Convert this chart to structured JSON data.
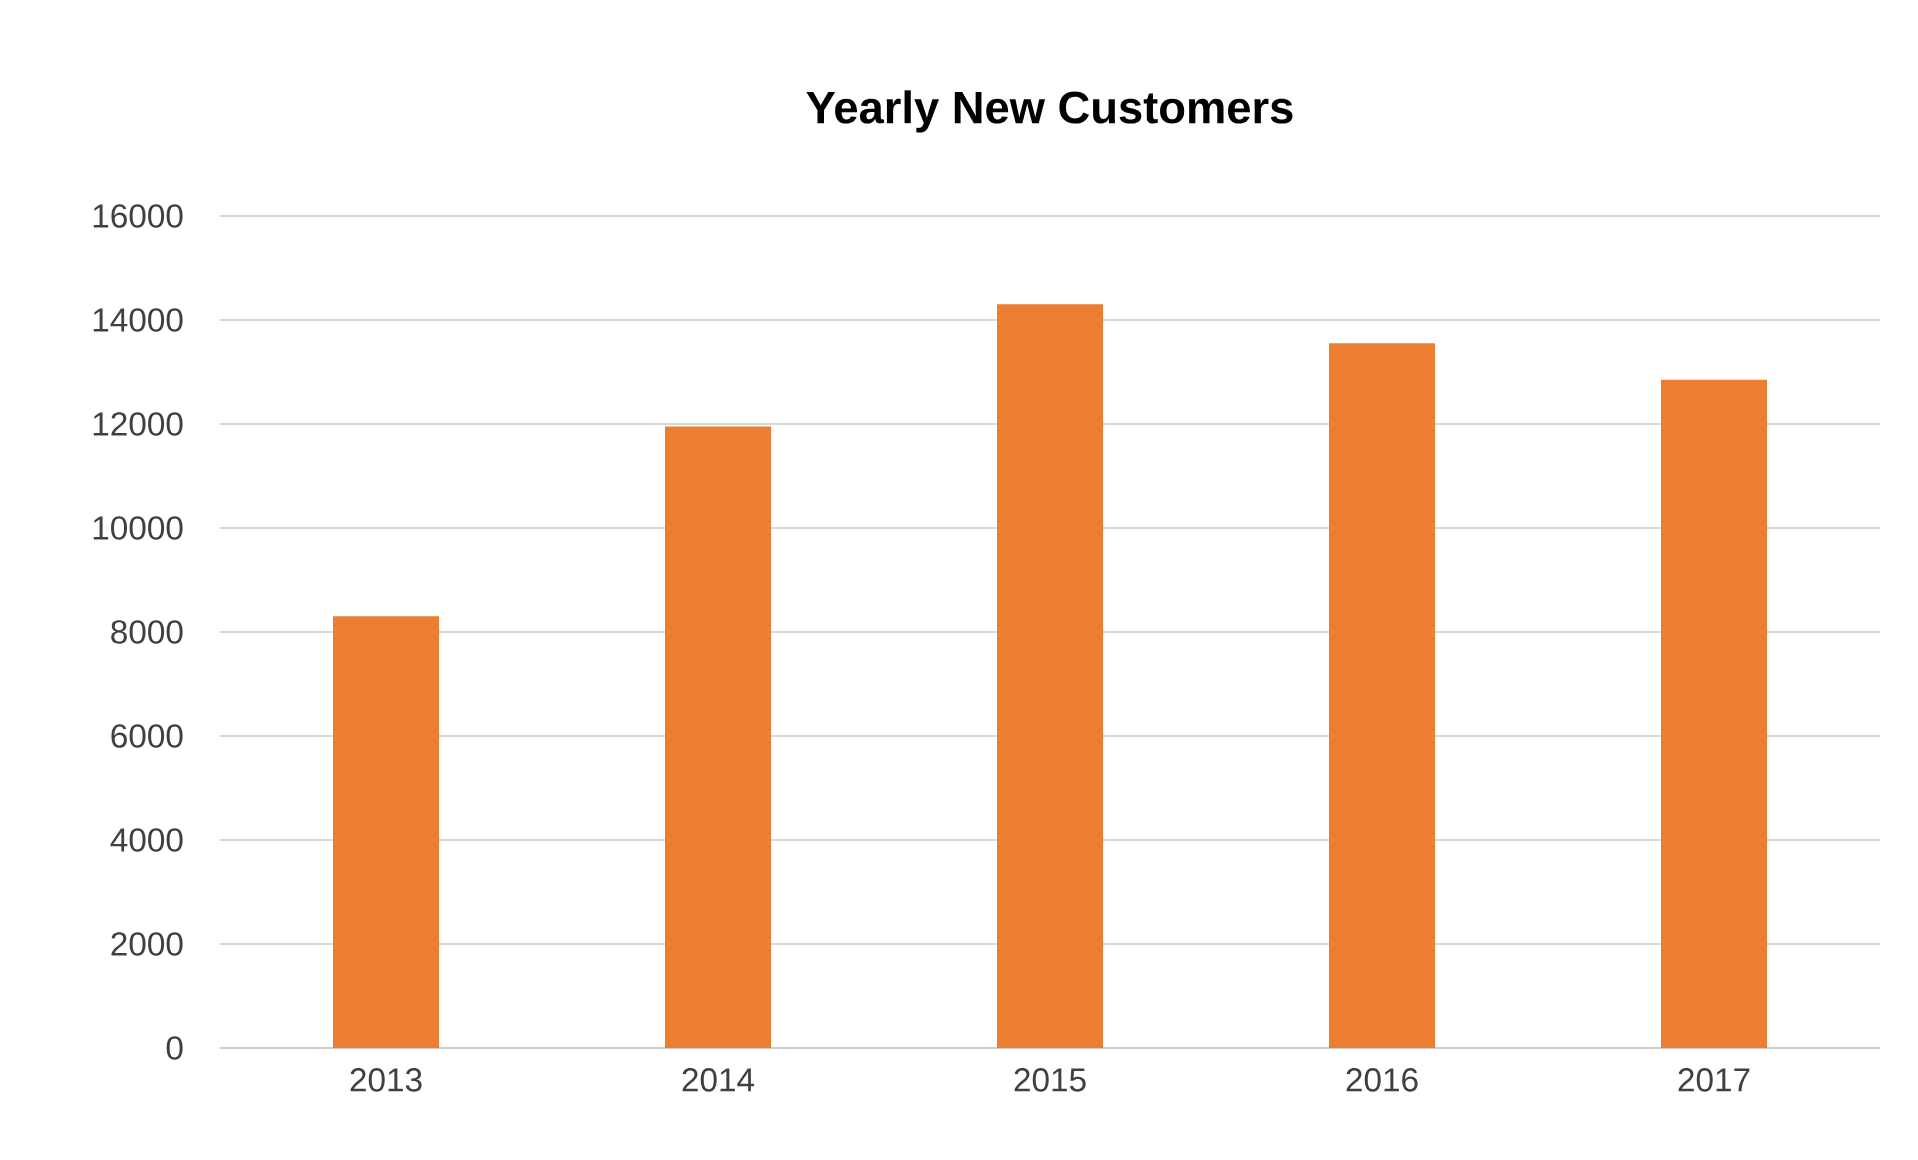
{
  "chart_data": {
    "type": "bar",
    "title": "Yearly New Customers",
    "categories": [
      "2013",
      "2014",
      "2015",
      "2016",
      "2017"
    ],
    "values": [
      8300,
      11950,
      14300,
      13550,
      12850
    ],
    "color": "#ed7d31",
    "ylim": [
      0,
      16000
    ],
    "yticks": [
      0,
      2000,
      4000,
      6000,
      8000,
      10000,
      12000,
      14000,
      16000
    ],
    "grid": "y"
  }
}
